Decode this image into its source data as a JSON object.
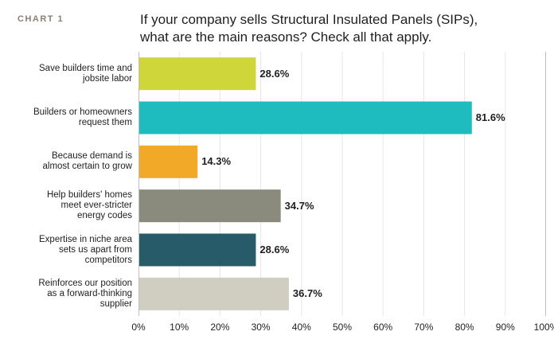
{
  "chart_data": {
    "type": "bar",
    "orientation": "horizontal",
    "label": "CHART 1",
    "title": "If your company sells Structural Insulated Panels (SIPs), what are the main reasons? Check all that apply.",
    "title_lines": [
      "If your company sells Structural Insulated Panels (SIPs),",
      "what are the main reasons? Check all that apply."
    ],
    "categories": [
      [
        "Save builders time and",
        "jobsite labor"
      ],
      [
        "Builders or homeowners",
        "request them"
      ],
      [
        "Because demand is",
        "almost certain to grow"
      ],
      [
        "Help builders' homes",
        "meet ever-stricter",
        "energy codes"
      ],
      [
        "Expertise in niche area",
        "sets us apart from",
        "competitors"
      ],
      [
        "Reinforces our position",
        "as a forward-thinking",
        "supplier"
      ]
    ],
    "values": [
      28.6,
      81.6,
      14.3,
      34.7,
      28.6,
      36.7
    ],
    "value_labels": [
      "28.6%",
      "81.6%",
      "14.3%",
      "34.7%",
      "28.6%",
      "36.7%"
    ],
    "colors": [
      "#cfd63a",
      "#1fbcbf",
      "#f2a928",
      "#8a8a7d",
      "#275b69",
      "#d0cec0"
    ],
    "xlim": [
      0,
      100
    ],
    "ticks": [
      0,
      10,
      20,
      30,
      40,
      50,
      60,
      70,
      80,
      90,
      100
    ],
    "tick_labels": [
      "0%",
      "10%",
      "20%",
      "30%",
      "40%",
      "50%",
      "60%",
      "70%",
      "80%",
      "90%",
      "100%"
    ],
    "grid": true,
    "grid_color": "#e6e6e6"
  }
}
